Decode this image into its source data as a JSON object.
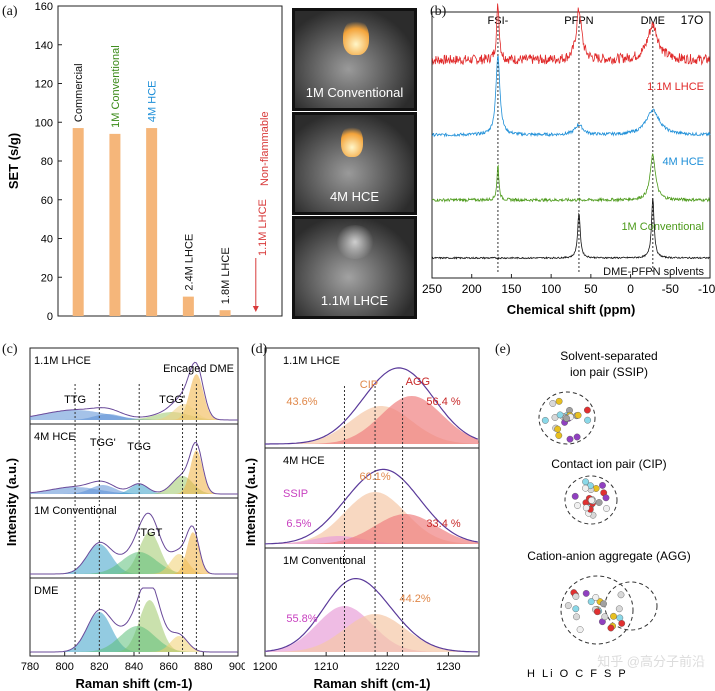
{
  "panels": {
    "a": {
      "label": "(a)",
      "chart_data": {
        "type": "bar",
        "ylabel": "SET (s/g)",
        "ylim": [
          0,
          160
        ],
        "yticks": [
          "0",
          "20",
          "40",
          "60",
          "80",
          "100",
          "120",
          "140",
          "160"
        ],
        "categories": [
          "Commercial",
          "1M Conventional",
          "4M HCE",
          "2.4M LHCE",
          "1.8M LHCE",
          "1.1M LHCE"
        ],
        "values": [
          97,
          94,
          97,
          10,
          3,
          0
        ],
        "label_colors": [
          "#111111",
          "#3a8a18",
          "#1e8fd8",
          "#111111",
          "#111111",
          "#d83a3a"
        ],
        "bar_color": "#f5b67a",
        "annotation": "Non-flammable"
      },
      "photos": [
        {
          "caption": "1M Conventional",
          "border": "#4caf2a"
        },
        {
          "caption": "4M HCE",
          "border": "#2b8fd6"
        },
        {
          "caption": "1.1M LHCE",
          "border": "#d83a3a"
        }
      ]
    },
    "b": {
      "label": "(b)",
      "nucleus": "17O",
      "xlabel": "Chemical shift (ppm)",
      "xticks": [
        "250",
        "200",
        "150",
        "100",
        "50",
        "0",
        "-50",
        "-100"
      ],
      "peaks": [
        "FSI-",
        "PFPN",
        "DME"
      ],
      "chart_data": {
        "type": "line",
        "xlim": [
          250,
          -100
        ],
        "series": [
          {
            "name": "1.1M LHCE",
            "color": "#e02828"
          },
          {
            "name": "4M HCE",
            "color": "#1e8fd8"
          },
          {
            "name": "1M Conventional",
            "color": "#4c9a1a"
          },
          {
            "name": "DME-PFPN solvents",
            "color": "#111111"
          }
        ]
      }
    },
    "c": {
      "label": "(c)",
      "ylabel": "Intensity (a.u.)",
      "xlabel": "Raman shift (cm-1)",
      "xticks": [
        "780",
        "800",
        "820",
        "840",
        "860",
        "880",
        "900"
      ],
      "chart_data": {
        "type": "area",
        "xlim": [
          780,
          900
        ]
      },
      "rows": [
        {
          "name": "1.1M LHCE",
          "ann": [
            "TTG",
            "TGG'",
            "Encaged DME"
          ]
        },
        {
          "name": "4M HCE",
          "ann": [
            "TGG'",
            "TGG"
          ]
        },
        {
          "name": "1M Conventional",
          "ann": [
            "TGT"
          ]
        },
        {
          "name": "DME",
          "ann": []
        }
      ]
    },
    "d": {
      "label": "(d)",
      "ylabel": "Intensity (a.u.)",
      "xlabel": "Raman shift (cm-1)",
      "xticks": [
        "1200",
        "1210",
        "1220",
        "1230"
      ],
      "chart_data": {
        "type": "area",
        "xlim": [
          1200,
          1235
        ]
      },
      "rows": [
        {
          "name": "1.1M LHCE",
          "labels": [
            "CIP",
            "AGG"
          ],
          "values": [
            "43.6%",
            "56.4 %"
          ]
        },
        {
          "name": "4M HCE",
          "labels": [
            "SSIP"
          ],
          "values": [
            "60.1%",
            "6.5%",
            "33.4 %"
          ]
        },
        {
          "name": "1M Conventional",
          "labels": [],
          "values": [
            "55.8%",
            "44.2%"
          ]
        }
      ]
    },
    "e": {
      "label": "(e)",
      "titles": [
        "Solvent-separated\nion pair (SSIP)",
        "Contact ion pair (CIP)",
        "Cation-anion aggregate (AGG)"
      ],
      "legend": "H  Li  O  C  F  S  P"
    }
  },
  "watermark": "知乎 @高分子前沿"
}
